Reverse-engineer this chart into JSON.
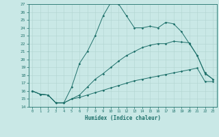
{
  "xlabel": "Humidex (Indice chaleur)",
  "xlim": [
    -0.5,
    23.5
  ],
  "ylim": [
    14,
    27
  ],
  "xticks": [
    0,
    1,
    2,
    3,
    4,
    5,
    6,
    7,
    8,
    9,
    10,
    11,
    12,
    13,
    14,
    15,
    16,
    17,
    18,
    19,
    20,
    21,
    22,
    23
  ],
  "yticks": [
    14,
    15,
    16,
    17,
    18,
    19,
    20,
    21,
    22,
    23,
    24,
    25,
    26,
    27
  ],
  "bg_color": "#c9e8e6",
  "line_color": "#1e706a",
  "line1_x": [
    0,
    1,
    2,
    3,
    4,
    5,
    6,
    7,
    8,
    9,
    10,
    11,
    12,
    13,
    14,
    15,
    16,
    17,
    18,
    19,
    20,
    21,
    22,
    23
  ],
  "line1_y": [
    16,
    15.6,
    15.5,
    14.5,
    14.5,
    16.5,
    19.5,
    21,
    23,
    25.5,
    27.2,
    27,
    25.5,
    24,
    24,
    24.2,
    24,
    24.7,
    24.5,
    23.5,
    22,
    20.5,
    18.2,
    17.5
  ],
  "line2_x": [
    0,
    1,
    2,
    3,
    4,
    5,
    6,
    7,
    8,
    9,
    10,
    11,
    12,
    13,
    14,
    15,
    16,
    17,
    18,
    19,
    20,
    21,
    22,
    23
  ],
  "line2_y": [
    16,
    15.6,
    15.5,
    14.5,
    14.5,
    15,
    15.5,
    16.5,
    17.5,
    18.2,
    19,
    19.8,
    20.5,
    21,
    21.5,
    21.8,
    22,
    22,
    22.3,
    22.2,
    22.1,
    20.5,
    18.3,
    17.5
  ],
  "line3_x": [
    0,
    1,
    2,
    3,
    4,
    5,
    6,
    7,
    8,
    9,
    10,
    11,
    12,
    13,
    14,
    15,
    16,
    17,
    18,
    19,
    20,
    21,
    22,
    23
  ],
  "line3_y": [
    16,
    15.6,
    15.5,
    14.5,
    14.5,
    15,
    15.2,
    15.5,
    15.8,
    16.1,
    16.4,
    16.7,
    17,
    17.3,
    17.5,
    17.7,
    17.9,
    18.1,
    18.3,
    18.5,
    18.7,
    18.9,
    17.2,
    17.2
  ]
}
